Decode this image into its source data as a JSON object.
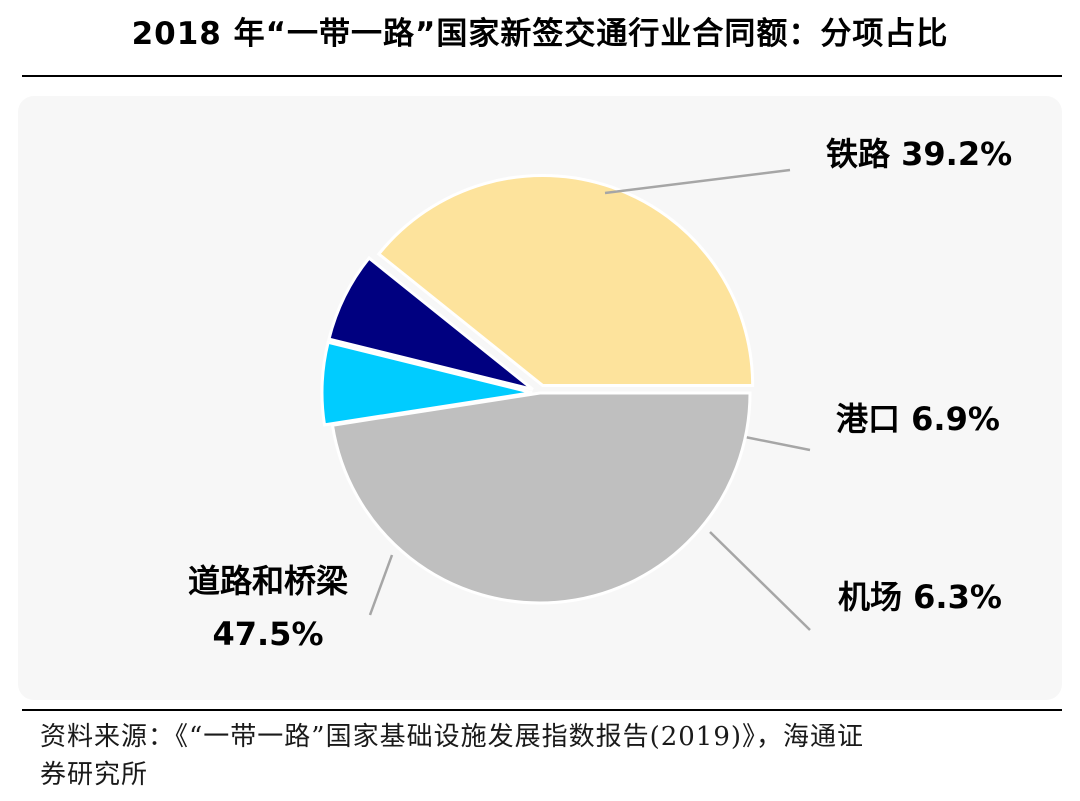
{
  "header": {
    "title": "2018 年“一带一路”国家新签交通行业合同额：分项占比"
  },
  "chart_data": {
    "type": "pie",
    "title": "2018 年“一带一路”国家新签交通行业合同额：分项占比",
    "slices": [
      {
        "name": "铁路",
        "value": 39.2,
        "label": "39.2%",
        "color": "#fde39c"
      },
      {
        "name": "港口",
        "value": 6.9,
        "label": "6.9%",
        "color": "#000080"
      },
      {
        "name": "机场",
        "value": 6.3,
        "label": "6.3%",
        "color": "#00ccff"
      },
      {
        "name": "道路和桥梁",
        "value": 47.5,
        "label": "47.5%",
        "color": "#bfbfbf"
      }
    ],
    "slice_border_color": "#ffffff",
    "leader_line_color": "#a6a6a6"
  },
  "footer": {
    "source_line1": "资料来源：《“一带一路”国家基础设施发展指数报告(2019)》，海通证",
    "source_line2": "券研究所"
  }
}
